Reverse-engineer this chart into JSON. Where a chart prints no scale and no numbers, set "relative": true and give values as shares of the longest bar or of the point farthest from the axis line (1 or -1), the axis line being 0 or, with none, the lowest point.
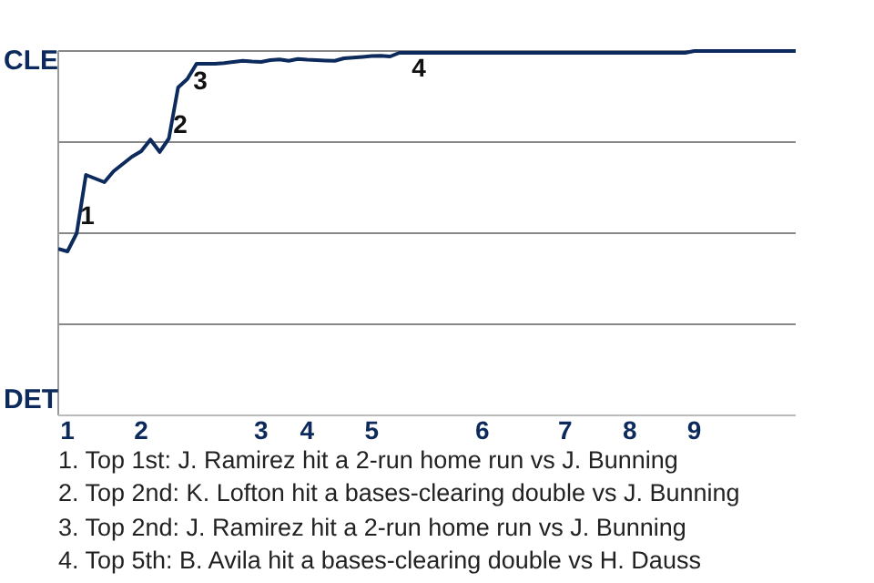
{
  "chart_data": {
    "type": "line",
    "relative": true,
    "categories": [
      null,
      "1",
      null,
      null,
      null,
      null,
      null,
      null,
      null,
      "2",
      null,
      null,
      null,
      null,
      null,
      null,
      null,
      null,
      null,
      null,
      null,
      null,
      "3",
      null,
      null,
      null,
      null,
      "4",
      null,
      null,
      null,
      null,
      null,
      null,
      "5",
      null,
      null,
      null,
      null,
      null,
      null,
      null,
      null,
      null,
      null,
      null,
      "6",
      null,
      null,
      null,
      null,
      null,
      null,
      null,
      null,
      "7",
      null,
      null,
      null,
      null,
      null,
      null,
      "8",
      null,
      null,
      null,
      null,
      null,
      null,
      "9",
      null,
      null,
      null,
      null,
      null,
      null,
      null,
      null,
      null,
      null,
      null
    ],
    "series": [
      {
        "color": "#0c2a5c",
        "values": [
          0.457,
          0.45,
          0.5,
          0.66,
          0.65,
          0.64,
          0.67,
          0.69,
          0.71,
          0.725,
          0.757,
          0.723,
          0.76,
          0.9,
          0.923,
          0.965,
          0.965,
          0.965,
          0.967,
          0.97,
          0.973,
          0.971,
          0.97,
          0.975,
          0.977,
          0.973,
          0.978,
          0.976,
          0.975,
          0.974,
          0.973,
          0.98,
          0.982,
          0.984,
          0.986,
          0.987,
          0.985,
          0.995,
          0.995,
          0.995,
          0.995,
          0.995,
          0.995,
          0.995,
          0.995,
          0.995,
          0.995,
          0.995,
          0.995,
          0.995,
          0.995,
          0.995,
          0.995,
          0.995,
          0.995,
          0.995,
          0.995,
          0.995,
          0.995,
          0.995,
          0.995,
          0.995,
          0.995,
          0.995,
          0.995,
          0.995,
          0.995,
          0.995,
          0.995,
          1,
          1,
          1,
          1,
          1,
          1,
          1,
          1,
          1,
          1,
          1,
          1
        ]
      }
    ],
    "grid": "y",
    "marker": "none",
    "line_style": "solid",
    "annotations": [
      "CLE",
      "DET",
      "1",
      "2",
      "3",
      "4",
      "1. Top 1st: J. Ramirez hit a 2-run home run vs J. Bunning",
      "2. Top 2nd: K. Lofton hit a bases-clearing double vs J. Bunning",
      "3. Top 2nd: J. Ramirez hit a 2-run home run vs J. Bunning",
      "4. Top 5th: B. Avila hit a bases-clearing double vs H. Dauss"
    ]
  }
}
